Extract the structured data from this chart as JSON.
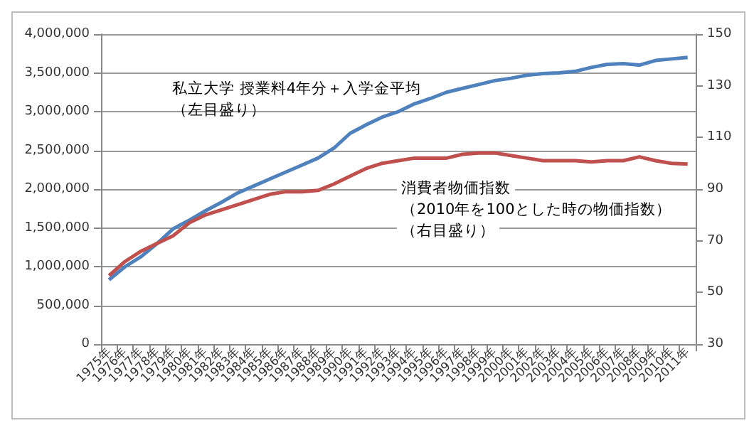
{
  "chart_data": {
    "type": "line",
    "categories": [
      "1975年",
      "1976年",
      "1977年",
      "1978年",
      "1979年",
      "1980年",
      "1981年",
      "1982年",
      "1983年",
      "1984年",
      "1985年",
      "1986年",
      "1987年",
      "1988年",
      "1989年",
      "1990年",
      "1991年",
      "1992年",
      "1993年",
      "1994年",
      "1995年",
      "1996年",
      "1997年",
      "1998年",
      "1999年",
      "2000年",
      "2001年",
      "2002年",
      "2003年",
      "2004年",
      "2005年",
      "2006年",
      "2007年",
      "2008年",
      "2009年",
      "2010年",
      "2011年"
    ],
    "series": [
      {
        "color": "#4f81bd",
        "values": [
          830000,
          1000000,
          1130000,
          1300000,
          1490000,
          1600000,
          1720000,
          1830000,
          1950000,
          2040000,
          2130000,
          2220000,
          2310000,
          2400000,
          2530000,
          2720000,
          2830000,
          2930000,
          3000000,
          3100000,
          3170000,
          3250000,
          3300000,
          3350000,
          3400000,
          3430000,
          3470000,
          3490000,
          3500000,
          3520000,
          3570000,
          3610000,
          3620000,
          3600000,
          3660000,
          3680000,
          3700000
        ]
      },
      {
        "color": "#c0504d",
        "axis": "y2",
        "values": [
          56.5,
          62,
          66,
          69,
          72,
          77,
          80,
          82,
          84,
          86,
          88,
          89,
          89,
          89.5,
          92,
          95,
          98,
          100,
          101,
          102,
          102,
          102,
          103.5,
          104,
          104,
          103,
          102,
          101,
          101,
          101,
          100.5,
          101,
          101,
          102.5,
          101,
          100,
          99.7
        ]
      }
    ],
    "ylim": [
      0,
      4000000
    ],
    "yticks": [
      0,
      {
        "value": 500000,
        "label": "500,000"
      },
      {
        "value": 1000000,
        "label": "1,000,000"
      },
      {
        "value": 1500000,
        "label": "1,500,000"
      },
      {
        "value": 2000000,
        "label": "2,000,000"
      },
      {
        "value": 2500000,
        "label": "2,500,000"
      },
      {
        "value": 3000000,
        "label": "3,000,000"
      },
      {
        "value": 3500000,
        "label": "3,500,000"
      },
      {
        "value": 4000000,
        "label": "4,000,000"
      }
    ],
    "y2lim": [
      30,
      150
    ],
    "y2ticks": [
      30,
      50,
      70,
      90,
      110,
      130,
      150
    ],
    "grid": "y",
    "marker": "none",
    "line_style": "solid",
    "annotations": [
      "私立大学 授業料4年分＋入学金平均",
      "（左目盛り）",
      "消費者物価指数",
      "（2010年を100とした時の物価指数）",
      "（右目盛り）"
    ]
  }
}
